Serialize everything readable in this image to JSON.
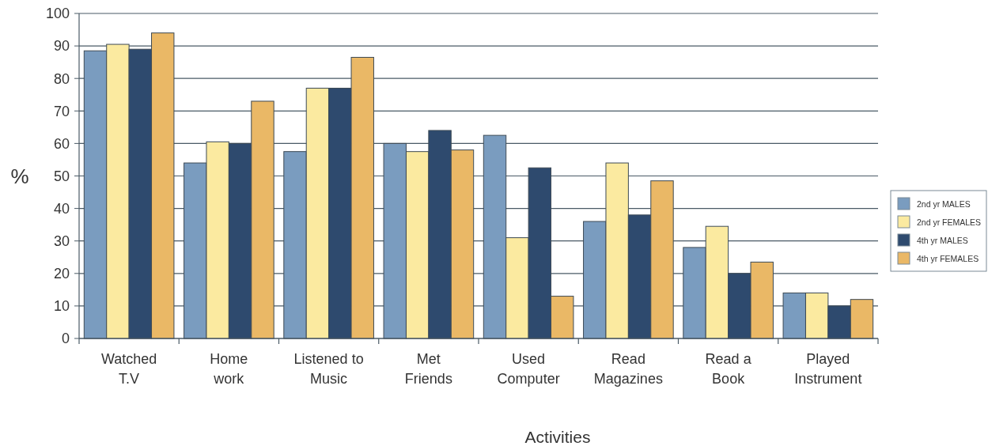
{
  "chart_data": {
    "type": "bar",
    "xlabel": "Activities",
    "ylabel": "%",
    "categories": [
      "Watched\nT.V",
      "Home\nwork",
      "Listened to\nMusic",
      "Met\nFriends",
      "Used\nComputer",
      "Read\nMagazines",
      "Read a\nBook",
      "Played\nInstrument"
    ],
    "series": [
      {
        "name": "2nd yr MALES",
        "color": "#7a9cbf",
        "values": [
          88.5,
          54,
          57.5,
          60,
          62.5,
          36,
          28,
          14
        ]
      },
      {
        "name": "2nd yr FEMALES",
        "color": "#fbeaa0",
        "values": [
          90.5,
          60.5,
          77,
          57.5,
          31,
          54,
          34.5,
          14
        ]
      },
      {
        "name": "4th yr MALES",
        "color": "#2e4a6e",
        "values": [
          89,
          60,
          77,
          64,
          52.5,
          38,
          20,
          10
        ]
      },
      {
        "name": "4th yr FEMALES",
        "color": "#eab866",
        "values": [
          94,
          73,
          86.5,
          58,
          13,
          48.5,
          23.5,
          12
        ]
      }
    ],
    "ylim": [
      0,
      100
    ],
    "yticks": [
      0,
      10,
      20,
      30,
      40,
      50,
      60,
      70,
      80,
      90,
      100
    ],
    "grid": "y",
    "legend": "right"
  }
}
